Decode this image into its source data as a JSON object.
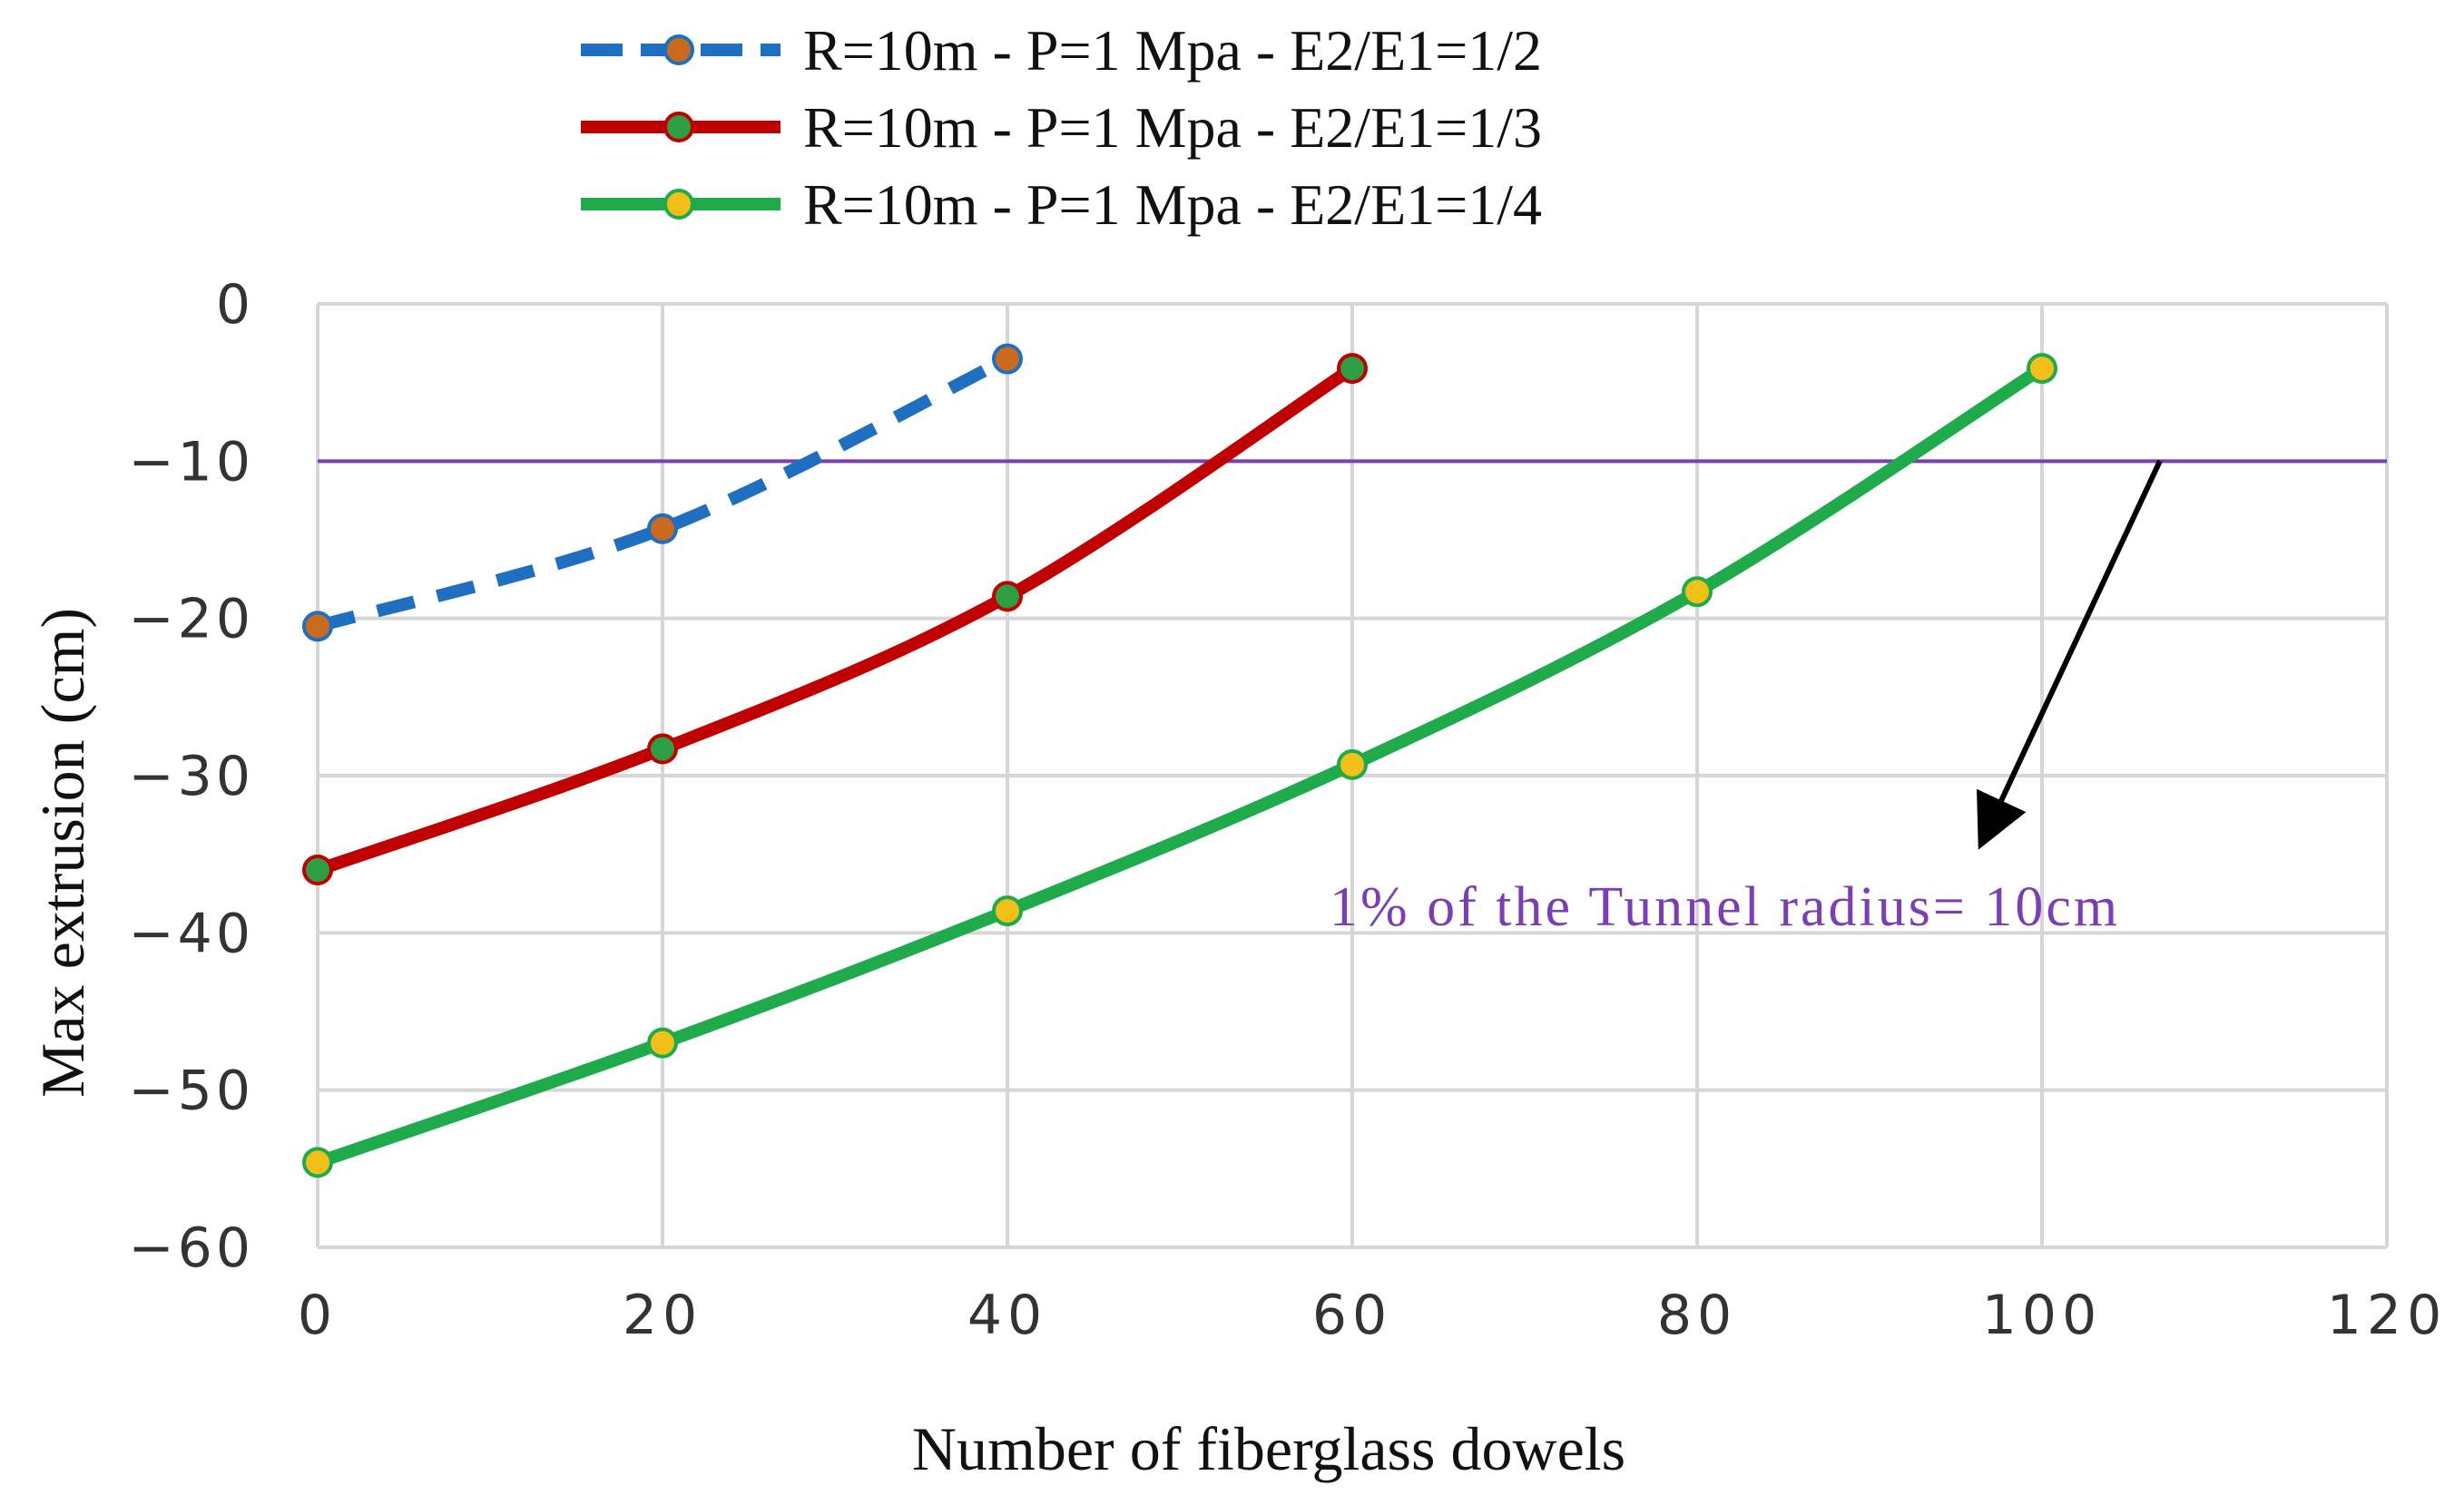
{
  "chart_data": {
    "type": "line",
    "title": "",
    "xlabel": "Number of fiberglass dowels",
    "ylabel": "Max extrusion (cm)",
    "xlim": [
      0,
      120
    ],
    "ylim": [
      -60,
      0
    ],
    "xticks": [
      0,
      20,
      40,
      60,
      80,
      100,
      120
    ],
    "yticks": [
      0,
      -10,
      -20,
      -30,
      -40,
      -50,
      -60
    ],
    "xtick_labels": [
      "0",
      "20",
      "40",
      "60",
      "80",
      "100",
      "120"
    ],
    "ytick_labels": [
      "0",
      "−10",
      "−20",
      "−30",
      "−40",
      "−50",
      "−60"
    ],
    "grid": true,
    "legend_position": "top",
    "series": [
      {
        "name": "R=10m - P=1 Mpa - E2/E1=1/2",
        "x": [
          0,
          20,
          40
        ],
        "values": [
          -20.5,
          -14.3,
          -3.5
        ],
        "color": "#1f6fc1",
        "marker_color": "#c96a1e",
        "dashed": true
      },
      {
        "name": "R=10m - P=1 Mpa - E2/E1=1/3",
        "x": [
          0,
          20,
          40,
          60
        ],
        "values": [
          -36,
          -28.3,
          -18.6,
          -4.1
        ],
        "color": "#c00000",
        "marker_color": "#2e9e45",
        "dashed": false
      },
      {
        "name": "R=10m - P=1 Mpa - E2/E1=1/4",
        "x": [
          0,
          20,
          40,
          60,
          80,
          100
        ],
        "values": [
          -54.6,
          -47,
          -38.6,
          -29.3,
          -18.3,
          -4.1
        ],
        "color": "#1faa4b",
        "marker_color": "#f2c019",
        "dashed": false
      }
    ],
    "reference_line": {
      "y": -10,
      "color": "#7b3fb3"
    },
    "annotation": {
      "text": "1% of the Tunnel radius= 10cm",
      "color": "#7b3fb3"
    }
  }
}
